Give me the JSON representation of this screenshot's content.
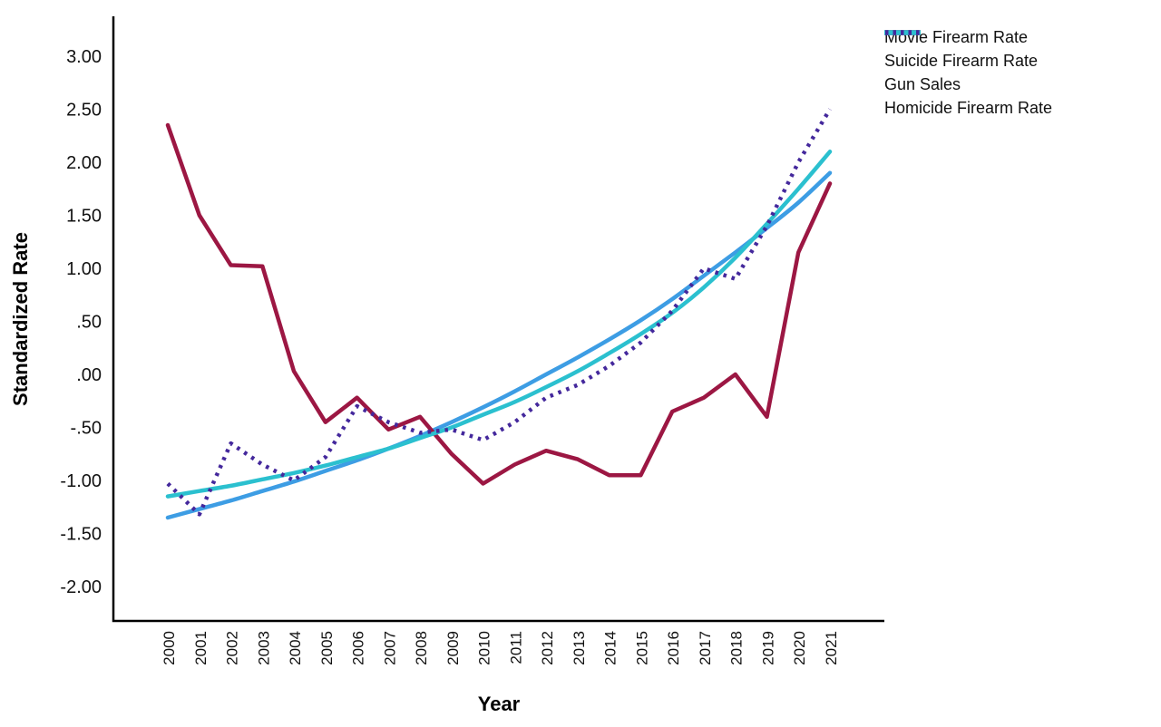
{
  "chart_data": {
    "type": "line",
    "title": "",
    "xlabel": "Year",
    "ylabel": "Standardized Rate",
    "grid": false,
    "legend_position": "top-right",
    "background_color": "#ffffff",
    "axis_color": "#000000",
    "text_color": "#111111",
    "ylim": [
      -2.25,
      3.25
    ],
    "x": [
      "2000",
      "2001",
      "2002",
      "2003",
      "2004",
      "2005",
      "2006",
      "2007",
      "2008",
      "2009",
      "2010",
      "2011",
      "2012",
      "2013",
      "2014",
      "2015",
      "2016",
      "2017",
      "2018",
      "2019",
      "2020",
      "2021"
    ],
    "yticks": [
      {
        "label": "3.00",
        "value": 3.0
      },
      {
        "label": "2.50",
        "value": 2.5
      },
      {
        "label": "2.00",
        "value": 2.0
      },
      {
        "label": "1.50",
        "value": 1.5
      },
      {
        "label": "1.00",
        "value": 1.0
      },
      {
        "label": ".50",
        "value": 0.5
      },
      {
        "label": ".00",
        "value": 0.0
      },
      {
        "label": "-.50",
        "value": -0.5
      },
      {
        "label": "-1.00",
        "value": -1.0
      },
      {
        "label": "-1.50",
        "value": -1.5
      },
      {
        "label": "-2.00",
        "value": -2.0
      }
    ],
    "series": [
      {
        "name": "Movie Firearm Rate",
        "color": "#3d9de4",
        "style": "solid",
        "smooth": true,
        "values": [
          -1.35,
          -1.27,
          -1.19,
          -1.1,
          -1.01,
          -0.91,
          -0.81,
          -0.7,
          -0.58,
          -0.45,
          -0.31,
          -0.16,
          0.0,
          0.16,
          0.33,
          0.51,
          0.71,
          0.93,
          1.15,
          1.38,
          1.62,
          1.9
        ]
      },
      {
        "name": "Suicide Firearm Rate",
        "color": "#9c1743",
        "style": "solid",
        "smooth": false,
        "values": [
          2.35,
          1.5,
          1.03,
          1.02,
          0.03,
          -0.45,
          -0.22,
          -0.52,
          -0.4,
          -0.75,
          -1.03,
          -0.85,
          -0.72,
          -0.8,
          -0.95,
          -0.95,
          -0.35,
          -0.22,
          0.0,
          -0.4,
          1.15,
          1.8
        ]
      },
      {
        "name": "Gun Sales",
        "color": "#2bc0cf",
        "style": "solid",
        "smooth": true,
        "values": [
          -1.15,
          -1.1,
          -1.05,
          -0.99,
          -0.93,
          -0.86,
          -0.78,
          -0.7,
          -0.6,
          -0.5,
          -0.38,
          -0.26,
          -0.12,
          0.03,
          0.2,
          0.38,
          0.58,
          0.82,
          1.1,
          1.42,
          1.75,
          2.1
        ]
      },
      {
        "name": "Homicide Firearm Rate",
        "color": "#44289c",
        "style": "dotted",
        "smooth": false,
        "values": [
          -1.03,
          -1.32,
          -0.65,
          -0.85,
          -1.0,
          -0.78,
          -0.3,
          -0.45,
          -0.55,
          -0.52,
          -0.62,
          -0.45,
          -0.22,
          -0.1,
          0.08,
          0.3,
          0.6,
          1.0,
          0.9,
          1.4,
          2.0,
          2.5
        ]
      }
    ]
  }
}
